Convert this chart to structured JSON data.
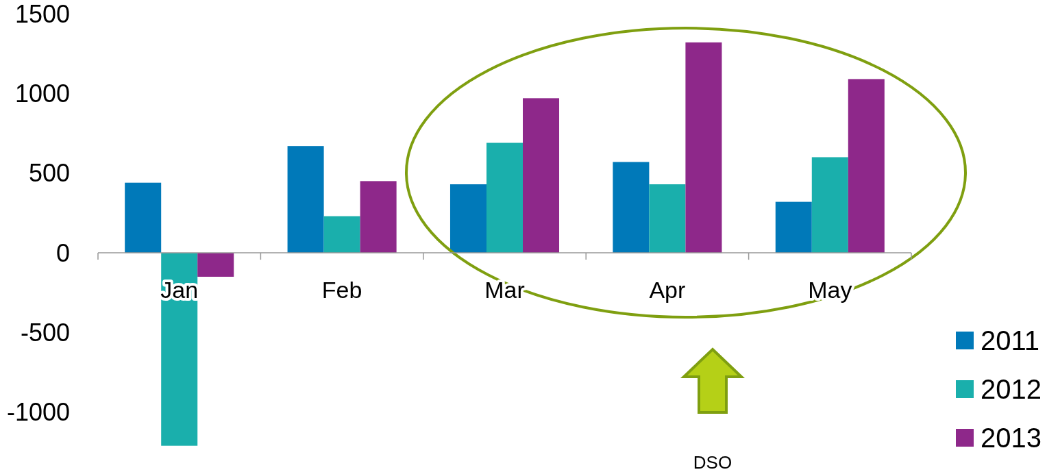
{
  "chart_data": {
    "type": "bar",
    "categories": [
      "Jan",
      "Feb",
      "Mar",
      "Apr",
      "May"
    ],
    "series": [
      {
        "name": "2011",
        "color": "#0079b9",
        "values": [
          440,
          670,
          430,
          570,
          320
        ]
      },
      {
        "name": "2012",
        "color": "#1aafac",
        "values": [
          -1210,
          230,
          690,
          430,
          600
        ]
      },
      {
        "name": "2013",
        "color": "#8e288a",
        "values": [
          -150,
          450,
          970,
          1320,
          1090
        ]
      }
    ],
    "ylim": [
      -1250,
      1500
    ],
    "yticks": [
      -1000,
      -500,
      0,
      500,
      1000,
      1500
    ],
    "grid": false,
    "legend": "bottom right",
    "annotations": [
      "DSO"
    ]
  }
}
